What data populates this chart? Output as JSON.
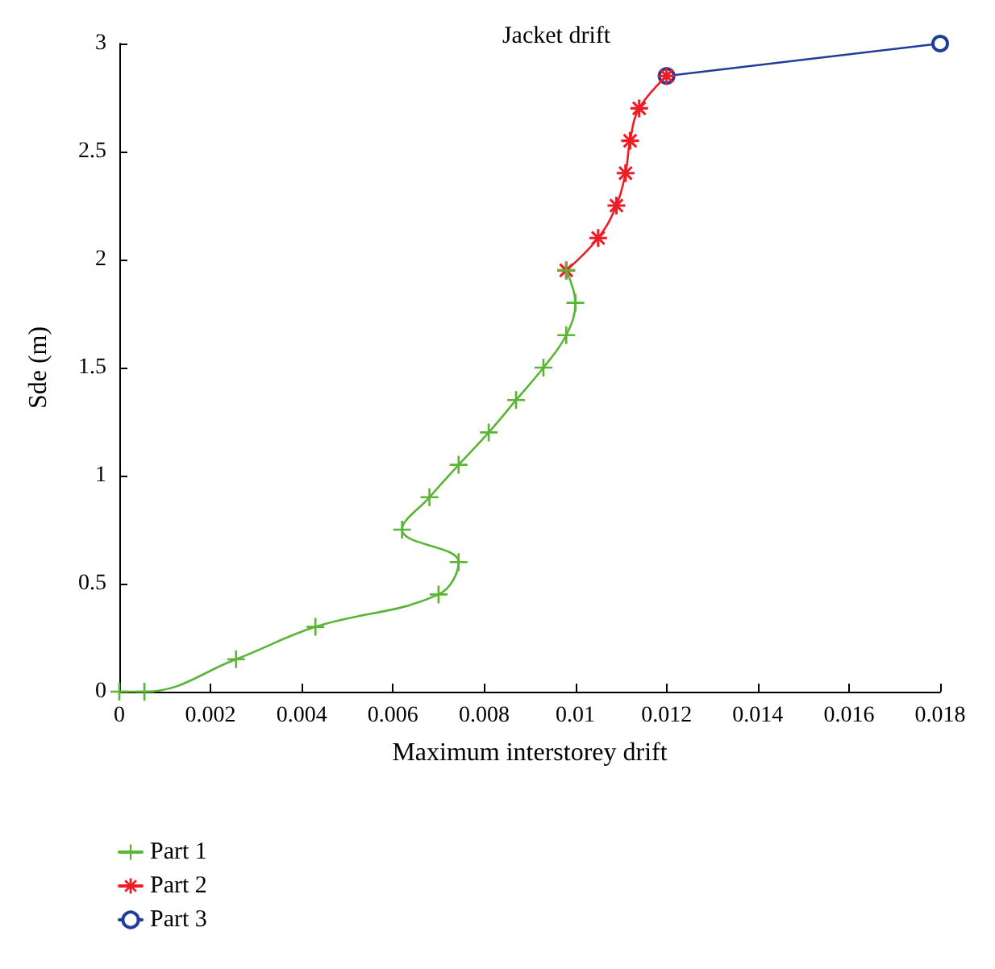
{
  "chart_data": {
    "type": "line",
    "title": "Jacket drift",
    "xlabel": "Maximum interstorey drift",
    "ylabel": "Sde (m)",
    "xlim": [
      0,
      0.018
    ],
    "xticks": [
      0,
      0.002,
      0.004,
      0.006,
      0.008,
      0.01,
      0.012,
      0.014,
      0.016,
      0.018
    ],
    "ylim": [
      0,
      3
    ],
    "yticks": [
      0,
      0.5,
      1,
      1.5,
      2,
      2.5,
      3
    ],
    "grid": false,
    "legend": "bottom left",
    "line_style": "solid",
    "series": [
      {
        "name": "Part 1",
        "color": "#5ab534",
        "marker": "cross",
        "x": [
          0,
          0.00055,
          0.00256,
          0.0043,
          0.007,
          0.00744,
          0.0062,
          0.0068,
          0.00744,
          0.0081,
          0.0087,
          0.0093,
          0.0098,
          0.01,
          0.0098
        ],
        "values": [
          0,
          0,
          0.15,
          0.3,
          0.45,
          0.6,
          0.75,
          0.9,
          1.05,
          1.2,
          1.35,
          1.5,
          1.65,
          1.8,
          1.95
        ]
      },
      {
        "name": "Part 2",
        "color": "#ee1c24",
        "marker": "star",
        "x": [
          0.0098,
          0.0105,
          0.0109,
          0.0111,
          0.0112,
          0.0114,
          0.012
        ],
        "values": [
          1.95,
          2.1,
          2.25,
          2.4,
          2.55,
          2.7,
          2.85
        ]
      },
      {
        "name": "Part 3",
        "color": "#1f3d99",
        "marker": "circle",
        "x": [
          0.012,
          0.018
        ],
        "values": [
          2.85,
          3
        ]
      }
    ]
  }
}
